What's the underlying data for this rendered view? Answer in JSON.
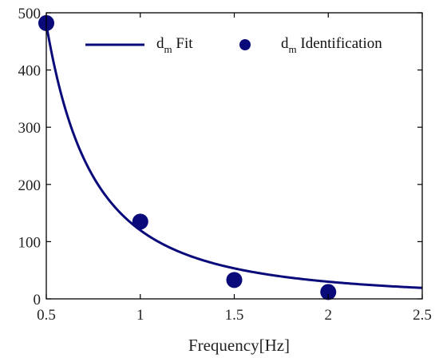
{
  "chart_data": {
    "type": "scatter",
    "xlabel": "Frequency[Hz]",
    "ylabel": "",
    "xlim": [
      0.5,
      2.5
    ],
    "ylim": [
      0,
      500
    ],
    "xticks": [
      "0.5",
      "1",
      "1.5",
      "2",
      "2.5"
    ],
    "yticks": [
      "0",
      "100",
      "200",
      "300",
      "400",
      "500"
    ],
    "grid": false,
    "legend_position": "top",
    "colors": {
      "series": "#0a0a7a",
      "axis": "#000000"
    },
    "series": [
      {
        "name": "Fit",
        "legend_main": "d",
        "legend_sub": "m",
        "legend_suffix": " Fit",
        "kind": "line",
        "model": "y = a / x^2",
        "a": 120,
        "x_range": [
          0.5,
          2.5
        ]
      },
      {
        "name": "Identification",
        "legend_main": "d",
        "legend_sub": "m",
        "legend_suffix": " Identification",
        "kind": "scatter",
        "points": [
          {
            "x": 0.5,
            "y": 482
          },
          {
            "x": 1.0,
            "y": 135
          },
          {
            "x": 1.5,
            "y": 33
          },
          {
            "x": 2.0,
            "y": 12
          }
        ]
      }
    ]
  }
}
